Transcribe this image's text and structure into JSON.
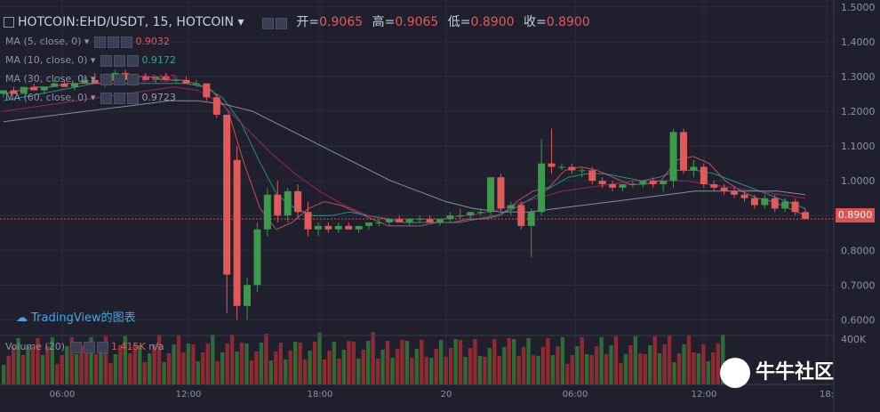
{
  "header": {
    "symbol": "HOTCOIN:EHD/USDT, 15, HOTCOIN",
    "open_label": "开=",
    "open": "0.9065",
    "high_label": "高=",
    "high": "0.9065",
    "low_label": "低=",
    "low": "0.8900",
    "close_label": "收=",
    "close": "0.8900"
  },
  "indicators": [
    {
      "label": "MA (5, close, 0)",
      "value": "0.9032",
      "color": "#e05a5a"
    },
    {
      "label": "MA (10, close, 0)",
      "value": "0.9172",
      "color": "#26a69a"
    },
    {
      "label": "MA (30, close, 0)",
      "value": "0.9437",
      "color": "#b0246c"
    },
    {
      "label": "MA (60, close, 0)",
      "value": "0.9723",
      "color": "#9aa0b0"
    }
  ],
  "volume_legend": {
    "label": "Volume (20)",
    "value": "1.415K",
    "na": "n/a"
  },
  "watermark": "TradingView的图表",
  "brand": "牛牛社区",
  "last_price": "0.8900",
  "colors": {
    "up": "#3d9a4a",
    "down": "#e05a5a",
    "bg": "#1f1f2e",
    "grid": "#2c2e40"
  },
  "chart_data": {
    "type": "candlestick",
    "title": "HOTCOIN:EHD/USDT, 15, HOTCOIN",
    "y_ticks": [
      "1.5000",
      "1.4000",
      "1.3000",
      "1.2000",
      "1.1000",
      "1.0000",
      "0.9000",
      "0.8000",
      "0.7000",
      "0.6000"
    ],
    "x_ticks": [
      "06:00",
      "12:00",
      "18:00",
      "20",
      "06:00",
      "12:00",
      "18:"
    ],
    "volume_tick": "400K",
    "ylim": [
      0.56,
      1.52
    ],
    "candles": [
      [
        1.25,
        1.26,
        1.24,
        1.26
      ],
      [
        1.26,
        1.27,
        1.25,
        1.25
      ],
      [
        1.25,
        1.27,
        1.25,
        1.27
      ],
      [
        1.27,
        1.28,
        1.26,
        1.26
      ],
      [
        1.26,
        1.27,
        1.25,
        1.27
      ],
      [
        1.27,
        1.29,
        1.27,
        1.28
      ],
      [
        1.28,
        1.29,
        1.27,
        1.27
      ],
      [
        1.27,
        1.28,
        1.26,
        1.28
      ],
      [
        1.28,
        1.3,
        1.28,
        1.29
      ],
      [
        1.29,
        1.31,
        1.28,
        1.28
      ],
      [
        1.28,
        1.29,
        1.27,
        1.29
      ],
      [
        1.29,
        1.32,
        1.29,
        1.31
      ],
      [
        1.31,
        1.32,
        1.29,
        1.29
      ],
      [
        1.29,
        1.3,
        1.28,
        1.3
      ],
      [
        1.3,
        1.31,
        1.29,
        1.29
      ],
      [
        1.29,
        1.3,
        1.28,
        1.3
      ],
      [
        1.3,
        1.31,
        1.29,
        1.29
      ],
      [
        1.29,
        1.3,
        1.28,
        1.29
      ],
      [
        1.29,
        1.3,
        1.28,
        1.28
      ],
      [
        1.28,
        1.29,
        1.27,
        1.28
      ],
      [
        1.28,
        1.28,
        1.23,
        1.24
      ],
      [
        1.24,
        1.25,
        1.18,
        1.19
      ],
      [
        1.19,
        1.19,
        0.62,
        0.73
      ],
      [
        1.06,
        1.1,
        0.6,
        0.64
      ],
      [
        0.64,
        0.72,
        0.6,
        0.7
      ],
      [
        0.7,
        0.88,
        0.68,
        0.86
      ],
      [
        0.86,
        0.98,
        0.84,
        0.96
      ],
      [
        0.96,
        1.0,
        0.88,
        0.9
      ],
      [
        0.9,
        0.98,
        0.88,
        0.97
      ],
      [
        0.97,
        0.99,
        0.89,
        0.91
      ],
      [
        0.91,
        0.94,
        0.84,
        0.86
      ],
      [
        0.86,
        0.88,
        0.84,
        0.87
      ],
      [
        0.87,
        0.88,
        0.85,
        0.86
      ],
      [
        0.86,
        0.88,
        0.85,
        0.87
      ],
      [
        0.87,
        0.88,
        0.86,
        0.86
      ],
      [
        0.86,
        0.87,
        0.85,
        0.87
      ],
      [
        0.87,
        0.88,
        0.86,
        0.88
      ],
      [
        0.88,
        0.89,
        0.87,
        0.88
      ],
      [
        0.88,
        0.89,
        0.87,
        0.89
      ],
      [
        0.89,
        0.9,
        0.88,
        0.88
      ],
      [
        0.88,
        0.89,
        0.87,
        0.89
      ],
      [
        0.89,
        0.9,
        0.88,
        0.89
      ],
      [
        0.89,
        0.9,
        0.88,
        0.88
      ],
      [
        0.88,
        0.89,
        0.87,
        0.89
      ],
      [
        0.89,
        0.91,
        0.88,
        0.9
      ],
      [
        0.9,
        0.92,
        0.89,
        0.9
      ],
      [
        0.9,
        0.91,
        0.89,
        0.91
      ],
      [
        0.91,
        0.92,
        0.9,
        0.91
      ],
      [
        0.91,
        1.01,
        0.9,
        1.01
      ],
      [
        1.01,
        1.02,
        0.91,
        0.92
      ],
      [
        0.92,
        0.94,
        0.9,
        0.93
      ],
      [
        0.93,
        0.94,
        0.86,
        0.87
      ],
      [
        0.87,
        0.92,
        0.78,
        0.91
      ],
      [
        0.91,
        1.12,
        0.9,
        1.05
      ],
      [
        1.05,
        1.15,
        1.02,
        1.04
      ],
      [
        1.04,
        1.05,
        1.03,
        1.04
      ],
      [
        1.04,
        1.05,
        1.02,
        1.03
      ],
      [
        1.03,
        1.04,
        1.01,
        1.03
      ],
      [
        1.03,
        1.04,
        0.99,
        1.0
      ],
      [
        1.0,
        1.01,
        0.98,
        0.99
      ],
      [
        0.99,
        1.0,
        0.97,
        0.98
      ],
      [
        0.98,
        0.99,
        0.97,
        0.99
      ],
      [
        0.99,
        1.0,
        0.98,
        0.99
      ],
      [
        0.99,
        1.0,
        0.98,
        1.0
      ],
      [
        1.0,
        1.01,
        0.98,
        0.99
      ],
      [
        0.99,
        1.0,
        0.97,
        1.0
      ],
      [
        1.0,
        1.15,
        0.98,
        1.14
      ],
      [
        1.14,
        1.15,
        1.02,
        1.03
      ],
      [
        1.03,
        1.06,
        1.01,
        1.04
      ],
      [
        1.04,
        1.05,
        0.98,
        0.99
      ],
      [
        0.99,
        1.0,
        0.97,
        0.98
      ],
      [
        0.98,
        0.99,
        0.96,
        0.97
      ],
      [
        0.97,
        0.98,
        0.95,
        0.96
      ],
      [
        0.96,
        0.97,
        0.94,
        0.95
      ],
      [
        0.95,
        0.96,
        0.92,
        0.93
      ],
      [
        0.93,
        0.96,
        0.92,
        0.95
      ],
      [
        0.95,
        0.96,
        0.91,
        0.92
      ],
      [
        0.92,
        0.95,
        0.91,
        0.94
      ],
      [
        0.94,
        0.95,
        0.9,
        0.91
      ],
      [
        0.91,
        0.92,
        0.89,
        0.89
      ]
    ],
    "ma": {
      "MA5": [
        1.25,
        1.26,
        1.27,
        1.27,
        1.28,
        1.28,
        1.28,
        1.29,
        1.3,
        1.3,
        1.29,
        1.29,
        1.28,
        1.26,
        1.2,
        1.05,
        0.92,
        0.86,
        0.88,
        0.92,
        0.94,
        0.93,
        0.91,
        0.89,
        0.87,
        0.87,
        0.87,
        0.88,
        0.88,
        0.89,
        0.89,
        0.9,
        0.94,
        0.97,
        0.98,
        1.03,
        1.04,
        1.03,
        1.01,
        0.99,
        0.99,
        1.0,
        1.06,
        1.07,
        1.05,
        1.0,
        0.97,
        0.95,
        0.94,
        0.92,
        0.9
      ],
      "MA10": [
        1.23,
        1.24,
        1.25,
        1.26,
        1.27,
        1.28,
        1.28,
        1.28,
        1.28,
        1.28,
        1.28,
        1.27,
        1.24,
        1.17,
        1.06,
        0.96,
        0.92,
        0.9,
        0.9,
        0.91,
        0.9,
        0.89,
        0.88,
        0.88,
        0.88,
        0.88,
        0.89,
        0.9,
        0.92,
        0.95,
        0.98,
        1.01,
        1.02,
        1.02,
        1.01,
        1.0,
        1.01,
        1.03,
        1.03,
        1.02,
        1.0,
        0.98,
        0.96,
        0.94,
        0.92
      ],
      "MA30": [
        1.2,
        1.21,
        1.22,
        1.23,
        1.24,
        1.25,
        1.26,
        1.27,
        1.26,
        1.22,
        1.15,
        1.08,
        1.02,
        0.97,
        0.93,
        0.9,
        0.89,
        0.89,
        0.89,
        0.9,
        0.91,
        0.93,
        0.95,
        0.97,
        0.98,
        0.99,
        1.0,
        1.0,
        1.0,
        0.99,
        0.98,
        0.97,
        0.96,
        0.95
      ],
      "MA60": [
        1.17,
        1.18,
        1.19,
        1.2,
        1.21,
        1.22,
        1.23,
        1.23,
        1.22,
        1.2,
        1.16,
        1.12,
        1.08,
        1.04,
        1.0,
        0.97,
        0.94,
        0.92,
        0.91,
        0.91,
        0.92,
        0.93,
        0.94,
        0.95,
        0.96,
        0.97,
        0.97,
        0.97,
        0.97,
        0.96
      ]
    }
  }
}
